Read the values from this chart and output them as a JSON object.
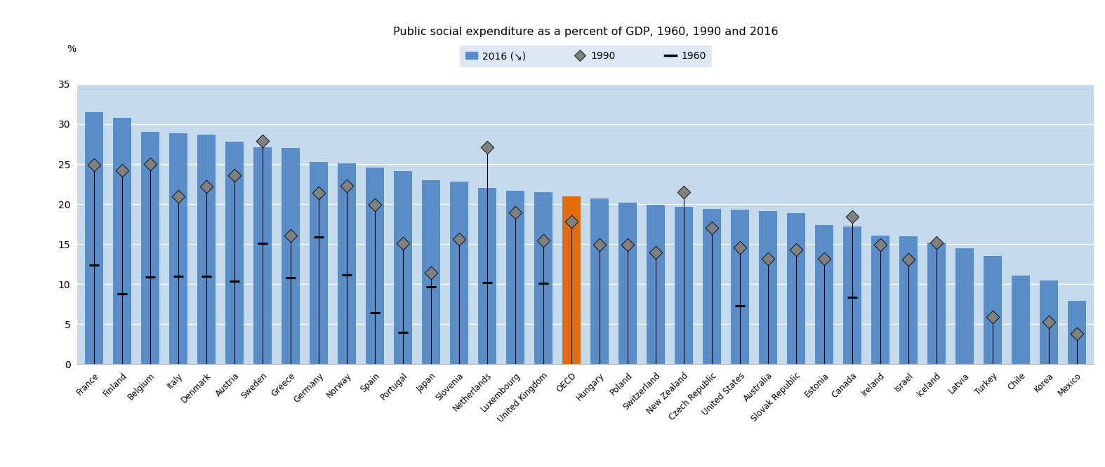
{
  "title": "Public social expenditure as a percent of GDP, 1960, 1990 and 2016",
  "ylim": [
    0,
    35
  ],
  "yticks": [
    0,
    5,
    10,
    15,
    20,
    25,
    30,
    35
  ],
  "fig_bg_color": "#ffffff",
  "legend_band_color": "#dce9f5",
  "plot_bg_color": "#c5d9ed",
  "bar_color_default": "#5b8dc8",
  "bar_color_highlight": "#e36c0a",
  "diamond_color": "#808080",
  "grid_color": "#ffffff",
  "countries": [
    "France",
    "Finland",
    "Belgium",
    "Italy",
    "Denmark",
    "Austria",
    "Sweden",
    "Greece",
    "Germany",
    "Norway",
    "Spain",
    "Portugal",
    "Japan",
    "Slovenia",
    "Netherlands",
    "Luxembourg",
    "United Kingdom",
    "OECD",
    "Hungary",
    "Poland",
    "Switzerland",
    "New Zealand",
    "Czech Republic",
    "United States",
    "Australia",
    "Slovak Republic",
    "Estonia",
    "Canada",
    "Ireland",
    "Israel",
    "Iceland",
    "Latvia",
    "Turkey",
    "Chile",
    "Korea",
    "Mexico"
  ],
  "values_2016": [
    31.5,
    30.8,
    29.0,
    28.9,
    28.7,
    27.8,
    27.1,
    27.0,
    25.3,
    25.1,
    24.6,
    24.1,
    23.0,
    22.8,
    22.0,
    21.7,
    21.5,
    21.0,
    20.7,
    20.2,
    19.9,
    19.7,
    19.4,
    19.3,
    19.1,
    18.9,
    17.4,
    17.2,
    16.1,
    16.0,
    15.2,
    14.5,
    13.5,
    11.1,
    10.5,
    7.9
  ],
  "values_1990": [
    24.9,
    24.2,
    25.0,
    21.0,
    22.2,
    23.6,
    27.9,
    16.1,
    21.4,
    22.3,
    19.9,
    15.1,
    11.4,
    15.6,
    27.1,
    19.0,
    15.5,
    17.8,
    14.9,
    14.9,
    14.0,
    21.5,
    17.0,
    14.6,
    13.2,
    14.3,
    13.2,
    18.4,
    14.9,
    13.1,
    15.2,
    null,
    5.9,
    null,
    5.3,
    3.8
  ],
  "values_1960": [
    12.4,
    8.8,
    10.9,
    11.0,
    11.0,
    10.4,
    15.1,
    10.8,
    15.9,
    11.2,
    6.4,
    4.0,
    9.7,
    null,
    10.2,
    null,
    10.1,
    null,
    null,
    null,
    null,
    null,
    null,
    7.3,
    null,
    null,
    null,
    8.4,
    null,
    null,
    null,
    null,
    null,
    null,
    null,
    null
  ],
  "highlight_country": "OECD",
  "legend_label_2016": "2016 (↘)",
  "legend_label_1990": "1990",
  "legend_label_1960": "1960",
  "figsize": [
    15.74,
    6.66
  ],
  "dpi": 100
}
